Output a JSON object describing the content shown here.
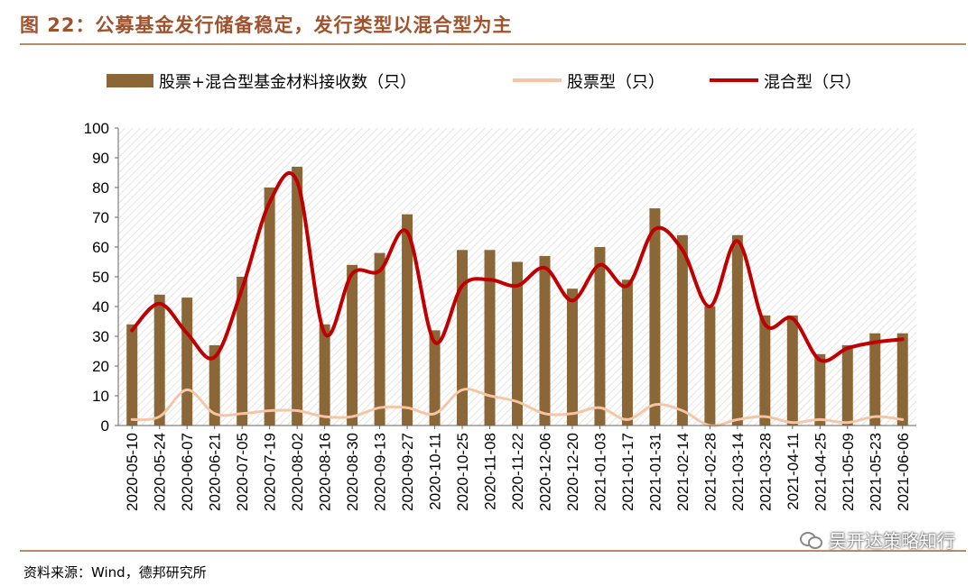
{
  "header": {
    "title": "图 22：公募基金发行储备稳定，发行类型以混合型为主"
  },
  "footer": {
    "source": "资料来源：Wind，德邦研究所",
    "watermark": "吴开达策略知行"
  },
  "icons": {
    "watermark_icon": "wechat-icon"
  },
  "colors": {
    "title": "#a0522d",
    "bar": "#8b6637",
    "stock_line": "#f5c6a5",
    "mixed_line": "#c00000",
    "rule": "#b58c68"
  },
  "chart_data": {
    "type": "bar",
    "title": "",
    "xlabel": "",
    "ylabel": "",
    "ylim": [
      0,
      100
    ],
    "yticks": [
      0,
      10,
      20,
      30,
      40,
      50,
      60,
      70,
      80,
      90,
      100
    ],
    "grid": "hatched-background",
    "legend_position": "top",
    "categories": [
      "2020-05-10",
      "2020-05-24",
      "2020-06-07",
      "2020-06-21",
      "2020-07-05",
      "2020-07-19",
      "2020-08-02",
      "2020-08-16",
      "2020-08-30",
      "2020-09-13",
      "2020-09-27",
      "2020-10-11",
      "2020-10-25",
      "2020-11-08",
      "2020-11-22",
      "2020-12-06",
      "2020-12-20",
      "2021-01-03",
      "2021-01-17",
      "2021-01-31",
      "2021-02-14",
      "2021-02-28",
      "2021-03-14",
      "2021-03-28",
      "2021-04-11",
      "2021-04-25",
      "2021-05-09",
      "2021-05-23",
      "2021-06-06"
    ],
    "series": [
      {
        "name": "股票+混合型基金材料接收数（只）",
        "type": "bar",
        "values": [
          34,
          44,
          43,
          27,
          50,
          80,
          87,
          34,
          54,
          58,
          71,
          32,
          59,
          59,
          55,
          57,
          46,
          60,
          49,
          73,
          64,
          40,
          64,
          37,
          37,
          24,
          27,
          31,
          31
        ]
      },
      {
        "name": "股票型（只）",
        "type": "line",
        "values": [
          2,
          3,
          12,
          4,
          4,
          5,
          5,
          3,
          3,
          6,
          6,
          4,
          12,
          10,
          8,
          4,
          4,
          6,
          2,
          7,
          5,
          0,
          2,
          3,
          1,
          2,
          1,
          3,
          2
        ]
      },
      {
        "name": "混合型（只）",
        "type": "line",
        "values": [
          32,
          41,
          31,
          23,
          46,
          75,
          82,
          31,
          51,
          52,
          65,
          28,
          47,
          49,
          47,
          53,
          42,
          54,
          47,
          66,
          59,
          40,
          62,
          34,
          36,
          22,
          26,
          28,
          29
        ]
      }
    ]
  }
}
